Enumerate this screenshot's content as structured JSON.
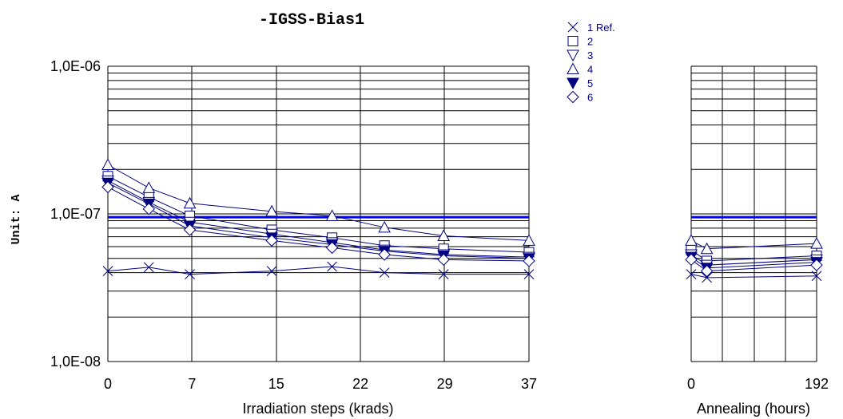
{
  "chart_data": {
    "type": "line",
    "title": "-IGSS-Bias1",
    "ylabel": "Unit: A",
    "y_scale": "log",
    "ylim": [
      1e-08,
      1e-06
    ],
    "y_ticks": [
      {
        "value": 1e-06,
        "label": "1,0E-06"
      },
      {
        "value": 1e-07,
        "label": "1,0E-07"
      },
      {
        "value": 1e-08,
        "label": "1,0E-08"
      }
    ],
    "grid": true,
    "legend_position": "top-right",
    "series_color": "#000080",
    "threshold": {
      "value": 9.5e-08,
      "color": "#0000ff"
    },
    "panels": [
      {
        "name": "irradiation",
        "xlabel": "Irradiation steps    (krads)",
        "xlim": [
          0,
          37
        ],
        "x_ticks": [
          "0",
          "7",
          "15",
          "22",
          "29",
          "37"
        ],
        "x": [
          0,
          3.6,
          7.2,
          14.4,
          19.7,
          24.3,
          29.5,
          37
        ]
      },
      {
        "name": "annealing",
        "xlabel": "Annealing    (hours)",
        "xlim": [
          0,
          192
        ],
        "x_ticks": [
          "0",
          "192"
        ],
        "x": [
          0,
          24,
          192
        ]
      }
    ],
    "series": [
      {
        "name": "1",
        "tag": "Ref.",
        "marker": "x",
        "irradiation": [
          4.1e-08,
          4.35e-08,
          3.9e-08,
          4.1e-08,
          4.4e-08,
          4e-08,
          3.9e-08,
          3.9e-08
        ],
        "annealing": [
          3.9e-08,
          3.7e-08,
          3.8e-08
        ]
      },
      {
        "name": "2",
        "tag": "",
        "marker": "square",
        "irradiation": [
          1.8e-07,
          1.3e-07,
          9.7e-08,
          7.8e-08,
          6.9e-08,
          6.1e-08,
          5.8e-08,
          5.5e-08
        ],
        "annealing": [
          5.7e-08,
          4.8e-08,
          5.2e-08
        ]
      },
      {
        "name": "3",
        "tag": "",
        "marker": "triangle-down",
        "irradiation": [
          1.68e-07,
          1.2e-07,
          8.8e-08,
          7.3e-08,
          6.4e-08,
          5.7e-08,
          5.3e-08,
          5.1e-08
        ],
        "annealing": [
          5.3e-08,
          4.5e-08,
          4.9e-08
        ]
      },
      {
        "name": "4",
        "tag": "",
        "marker": "triangle-up",
        "irradiation": [
          2.15e-07,
          1.5e-07,
          1.18e-07,
          1.04e-07,
          9.7e-08,
          8.1e-08,
          7.1e-08,
          6.6e-08
        ],
        "annealing": [
          6.6e-08,
          5.8e-08,
          6.3e-08
        ]
      },
      {
        "name": "5",
        "tag": "",
        "marker": "triangle-down-filled",
        "irradiation": [
          1.62e-07,
          1.17e-07,
          8.3e-08,
          6.9e-08,
          6.2e-08,
          5.6e-08,
          5.2e-08,
          5e-08
        ],
        "annealing": [
          5.1e-08,
          4.3e-08,
          4.7e-08
        ]
      },
      {
        "name": "6",
        "tag": "",
        "marker": "diamond",
        "irradiation": [
          1.52e-07,
          1.08e-07,
          7.8e-08,
          6.6e-08,
          5.9e-08,
          5.3e-08,
          4.9e-08,
          4.8e-08
        ],
        "annealing": [
          4.9e-08,
          4.1e-08,
          4.5e-08
        ]
      }
    ]
  }
}
